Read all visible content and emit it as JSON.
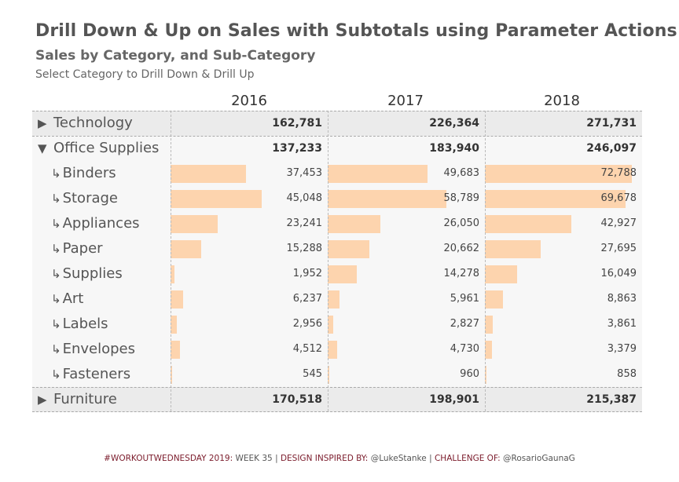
{
  "title": "Drill Down & Up on Sales with Subtotals using Parameter Actions",
  "subtitle": "Sales by Category, and Sub-Category",
  "instruction": "Select Category to Drill Down & Drill Up",
  "years": [
    "2016",
    "2017",
    "2018"
  ],
  "footer": {
    "k1": "#WORKOUTWEDNESDAY 2019:",
    "v1": "WEEK 35",
    "sep1": "|",
    "k2": "DESIGN INSPIRED BY:",
    "v2": "@LukeStanke",
    "sep2": "|",
    "k3": "CHALLENGE OF:",
    "v3": "@RosarioGaunaG"
  },
  "colors": {
    "bar": "#fdcfa5",
    "category_bg": "#ebebeb",
    "text": "#555555",
    "footer_key": "#7a1a2a"
  },
  "icons": {
    "collapsed": "▶",
    "expanded": "▼",
    "sub": "↳"
  },
  "chart_data": {
    "type": "bar",
    "title": "Drill Down & Up on Sales with Subtotals using Parameter Actions",
    "subtitle": "Sales by Category, and Sub-Category",
    "columns": [
      "2016",
      "2017",
      "2018"
    ],
    "rows": [
      {
        "label": "Technology",
        "level": "category",
        "state": "collapsed",
        "values": [
          "162,781",
          "226,364",
          "271,731"
        ]
      },
      {
        "label": "Office Supplies",
        "level": "category",
        "state": "expanded",
        "values": [
          "137,233",
          "183,940",
          "246,097"
        ]
      },
      {
        "label": "Binders",
        "level": "sub",
        "values": [
          "37,453",
          "49,683",
          "72,788"
        ],
        "numbers": [
          37453,
          49683,
          72788
        ]
      },
      {
        "label": "Storage",
        "level": "sub",
        "values": [
          "45,048",
          "58,789",
          "69,678"
        ],
        "numbers": [
          45048,
          58789,
          69678
        ]
      },
      {
        "label": "Appliances",
        "level": "sub",
        "values": [
          "23,241",
          "26,050",
          "42,927"
        ],
        "numbers": [
          23241,
          26050,
          42927
        ]
      },
      {
        "label": "Paper",
        "level": "sub",
        "values": [
          "15,288",
          "20,662",
          "27,695"
        ],
        "numbers": [
          15288,
          20662,
          27695
        ]
      },
      {
        "label": "Supplies",
        "level": "sub",
        "values": [
          "1,952",
          "14,278",
          "16,049"
        ],
        "numbers": [
          1952,
          14278,
          16049
        ]
      },
      {
        "label": "Art",
        "level": "sub",
        "values": [
          "6,237",
          "5,961",
          "8,863"
        ],
        "numbers": [
          6237,
          5961,
          8863
        ]
      },
      {
        "label": "Labels",
        "level": "sub",
        "values": [
          "2,956",
          "2,827",
          "3,861"
        ],
        "numbers": [
          2956,
          2827,
          3861
        ]
      },
      {
        "label": "Envelopes",
        "level": "sub",
        "values": [
          "4,512",
          "4,730",
          "3,379"
        ],
        "numbers": [
          4512,
          4730,
          3379
        ]
      },
      {
        "label": "Fasteners",
        "level": "sub",
        "values": [
          "545",
          "960",
          "858"
        ],
        "numbers": [
          545,
          960,
          858
        ]
      },
      {
        "label": "Furniture",
        "level": "category",
        "state": "collapsed",
        "values": [
          "170,518",
          "198,901",
          "215,387"
        ]
      }
    ],
    "bar_scale_max": 78000
  }
}
